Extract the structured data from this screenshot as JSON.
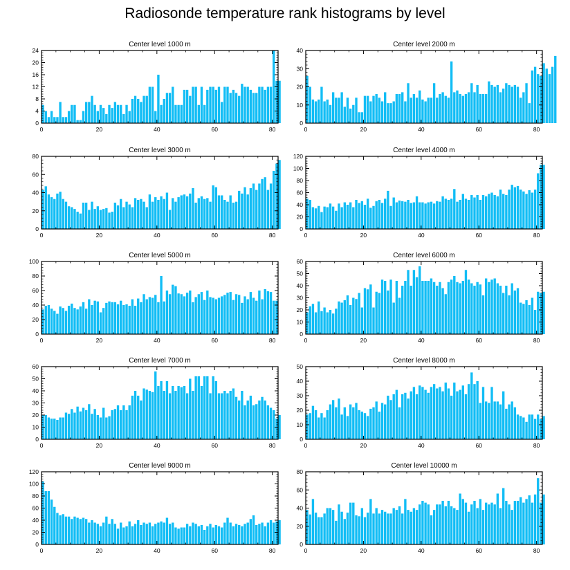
{
  "title": "Radiosonde temperature rank histograms by level",
  "colors": {
    "bar": "#12bdf5",
    "frame": "#000000",
    "background": "#ffffff"
  },
  "chart_data": [
    {
      "type": "bar",
      "title": "Center level 1000 m",
      "xlabel": "",
      "ylabel": "",
      "xlim": [
        0,
        82
      ],
      "ylim": [
        0,
        24
      ],
      "xticks": [
        0,
        20,
        40,
        60,
        80
      ],
      "yticks": [
        0,
        4,
        8,
        12,
        16,
        20,
        24
      ],
      "values": [
        6,
        4,
        2,
        4,
        2,
        2,
        7,
        2,
        2,
        4,
        6,
        6,
        1,
        1,
        4,
        7,
        7,
        9,
        6,
        4,
        6,
        5,
        3,
        6,
        5,
        7,
        6,
        6,
        3,
        6,
        4,
        8,
        9,
        8,
        7,
        9,
        9,
        12,
        12,
        4,
        16,
        6,
        8,
        10,
        10,
        12,
        6,
        6,
        6,
        11,
        11,
        9,
        12,
        12,
        6,
        12,
        6,
        11,
        12,
        12,
        11,
        12,
        7,
        12,
        12,
        10,
        11,
        10,
        9,
        13,
        12,
        12,
        11,
        10,
        10,
        12,
        12,
        11,
        12,
        12,
        24,
        14,
        14
      ]
    },
    {
      "type": "bar",
      "title": "Center level 2000 m",
      "xlabel": "",
      "ylabel": "",
      "xlim": [
        0,
        82
      ],
      "ylim": [
        0,
        40
      ],
      "xticks": [
        0,
        20,
        40,
        60,
        80
      ],
      "yticks": [
        0,
        10,
        20,
        30,
        40
      ],
      "values": [
        26,
        20,
        13,
        12,
        13,
        20,
        12,
        13,
        10,
        17,
        14,
        14,
        17,
        9,
        14,
        8,
        10,
        14,
        6,
        6,
        15,
        15,
        12,
        15,
        16,
        14,
        12,
        17,
        11,
        11,
        12,
        16,
        16,
        17,
        12,
        22,
        14,
        16,
        14,
        18,
        13,
        12,
        14,
        14,
        22,
        14,
        16,
        17,
        15,
        14,
        34,
        17,
        18,
        16,
        15,
        16,
        17,
        22,
        17,
        21,
        16,
        16,
        16,
        23,
        21,
        20,
        21,
        17,
        19,
        22,
        21,
        20,
        21,
        20,
        14,
        17,
        22,
        11,
        29,
        31,
        27,
        26,
        33,
        30,
        27,
        31,
        37
      ]
    },
    {
      "type": "bar",
      "title": "Center level 3000 m",
      "xlabel": "",
      "ylabel": "",
      "xlim": [
        0,
        82
      ],
      "ylim": [
        0,
        80
      ],
      "xticks": [
        0,
        20,
        40,
        60,
        80
      ],
      "yticks": [
        0,
        20,
        40,
        60,
        80
      ],
      "values": [
        43,
        47,
        38,
        35,
        33,
        39,
        41,
        33,
        30,
        25,
        24,
        22,
        19,
        17,
        29,
        29,
        21,
        30,
        22,
        25,
        21,
        22,
        23,
        18,
        19,
        29,
        26,
        33,
        24,
        30,
        27,
        24,
        34,
        32,
        33,
        30,
        24,
        38,
        30,
        35,
        32,
        36,
        33,
        40,
        21,
        34,
        30,
        35,
        37,
        38,
        36,
        39,
        45,
        29,
        34,
        36,
        33,
        34,
        30,
        48,
        46,
        37,
        37,
        32,
        30,
        37,
        29,
        30,
        42,
        39,
        46,
        38,
        45,
        50,
        43,
        50,
        55,
        57,
        43,
        50,
        64,
        72,
        76
      ]
    },
    {
      "type": "bar",
      "title": "Center level 4000 m",
      "xlabel": "",
      "ylabel": "",
      "xlim": [
        0,
        82
      ],
      "ylim": [
        0,
        120
      ],
      "xticks": [
        0,
        20,
        40,
        60,
        80
      ],
      "yticks": [
        0,
        20,
        40,
        60,
        80,
        100,
        120
      ],
      "values": [
        50,
        48,
        36,
        34,
        38,
        28,
        37,
        36,
        42,
        37,
        30,
        42,
        36,
        44,
        40,
        44,
        36,
        48,
        43,
        46,
        40,
        50,
        35,
        38,
        46,
        48,
        43,
        50,
        63,
        38,
        52,
        44,
        47,
        46,
        45,
        48,
        43,
        44,
        54,
        44,
        44,
        42,
        44,
        45,
        42,
        46,
        45,
        54,
        50,
        48,
        50,
        66,
        45,
        48,
        58,
        50,
        48,
        56,
        52,
        56,
        48,
        56,
        54,
        58,
        60,
        56,
        54,
        65,
        58,
        56,
        65,
        73,
        69,
        71,
        65,
        62,
        58,
        64,
        60,
        65,
        92,
        106,
        106
      ]
    },
    {
      "type": "bar",
      "title": "Center level 5000 m",
      "xlabel": "",
      "ylabel": "",
      "xlim": [
        0,
        82
      ],
      "ylim": [
        0,
        100
      ],
      "xticks": [
        0,
        20,
        40,
        60,
        80
      ],
      "yticks": [
        0,
        20,
        40,
        60,
        80,
        100
      ],
      "values": [
        34,
        39,
        40,
        35,
        32,
        28,
        38,
        36,
        32,
        39,
        42,
        36,
        34,
        38,
        44,
        35,
        48,
        40,
        46,
        45,
        30,
        36,
        43,
        45,
        44,
        44,
        41,
        46,
        40,
        41,
        39,
        48,
        39,
        49,
        44,
        55,
        48,
        51,
        50,
        54,
        44,
        80,
        45,
        60,
        55,
        68,
        66,
        56,
        55,
        52,
        57,
        60,
        44,
        51,
        55,
        58,
        47,
        60,
        51,
        50,
        48,
        50,
        52,
        54,
        57,
        58,
        47,
        55,
        54,
        43,
        52,
        48,
        58,
        50,
        46,
        60,
        48,
        62,
        59,
        58,
        46,
        46
      ]
    },
    {
      "type": "bar",
      "title": "Center level 6000 m",
      "xlabel": "",
      "ylabel": "",
      "xlim": [
        0,
        82
      ],
      "ylim": [
        0,
        60
      ],
      "xticks": [
        0,
        20,
        40,
        60,
        80
      ],
      "yticks": [
        0,
        10,
        20,
        30,
        40,
        50,
        60
      ],
      "values": [
        18,
        23,
        25,
        18,
        27,
        19,
        22,
        18,
        20,
        17,
        21,
        27,
        26,
        28,
        32,
        24,
        30,
        29,
        34,
        22,
        38,
        37,
        41,
        22,
        35,
        34,
        45,
        44,
        36,
        45,
        26,
        44,
        30,
        40,
        44,
        53,
        40,
        53,
        47,
        56,
        44,
        44,
        44,
        46,
        43,
        40,
        43,
        38,
        33,
        43,
        45,
        48,
        43,
        42,
        44,
        53,
        45,
        42,
        40,
        43,
        41,
        32,
        46,
        43,
        45,
        46,
        42,
        40,
        34,
        40,
        32,
        42,
        36,
        38,
        26,
        25,
        28,
        24,
        30,
        20,
        35,
        34,
        35
      ]
    },
    {
      "type": "bar",
      "title": "Center level 7000 m",
      "xlabel": "",
      "ylabel": "",
      "xlim": [
        0,
        82
      ],
      "ylim": [
        0,
        60
      ],
      "xticks": [
        0,
        20,
        40,
        60,
        80
      ],
      "yticks": [
        0,
        10,
        20,
        30,
        40,
        50,
        60
      ],
      "values": [
        20,
        20,
        18,
        17,
        17,
        16,
        18,
        18,
        22,
        21,
        25,
        22,
        27,
        23,
        26,
        24,
        29,
        21,
        25,
        20,
        18,
        26,
        18,
        19,
        24,
        25,
        28,
        24,
        28,
        24,
        28,
        36,
        40,
        36,
        32,
        42,
        41,
        40,
        39,
        56,
        44,
        48,
        40,
        48,
        38,
        44,
        40,
        44,
        43,
        44,
        38,
        50,
        40,
        52,
        52,
        44,
        52,
        52,
        38,
        52,
        48,
        38,
        38,
        40,
        38,
        40,
        42,
        35,
        32,
        40,
        28,
        32,
        36,
        28,
        29,
        32,
        35,
        32,
        28,
        26,
        24,
        17,
        20
      ]
    },
    {
      "type": "bar",
      "title": "Center level 8000 m",
      "xlabel": "",
      "ylabel": "",
      "xlim": [
        0,
        82
      ],
      "ylim": [
        0,
        50
      ],
      "xticks": [
        0,
        20,
        40,
        60,
        80
      ],
      "yticks": [
        0,
        10,
        20,
        30,
        40,
        50
      ],
      "values": [
        17,
        18,
        23,
        20,
        15,
        18,
        15,
        20,
        24,
        27,
        22,
        28,
        17,
        22,
        16,
        24,
        22,
        25,
        20,
        19,
        18,
        16,
        21,
        22,
        26,
        19,
        25,
        24,
        30,
        27,
        31,
        34,
        22,
        31,
        32,
        28,
        33,
        36,
        31,
        37,
        36,
        34,
        32,
        36,
        38,
        35,
        36,
        33,
        39,
        35,
        30,
        39,
        33,
        34,
        37,
        31,
        38,
        46,
        38,
        40,
        25,
        36,
        26,
        25,
        36,
        26,
        26,
        24,
        33,
        21,
        24,
        26,
        22,
        17,
        16,
        15,
        12,
        17,
        17,
        14,
        17,
        14,
        16
      ]
    },
    {
      "type": "bar",
      "title": "Center level 9000 m",
      "xlabel": "",
      "ylabel": "",
      "xlim": [
        0,
        82
      ],
      "ylim": [
        0,
        120
      ],
      "xticks": [
        0,
        20,
        40,
        60,
        80
      ],
      "yticks": [
        0,
        20,
        40,
        60,
        80,
        100,
        120
      ],
      "values": [
        104,
        88,
        88,
        74,
        62,
        52,
        48,
        50,
        46,
        46,
        42,
        46,
        44,
        42,
        44,
        42,
        36,
        40,
        36,
        34,
        30,
        36,
        46,
        34,
        42,
        34,
        26,
        36,
        28,
        30,
        38,
        30,
        34,
        40,
        32,
        36,
        34,
        36,
        30,
        34,
        36,
        38,
        36,
        44,
        34,
        36,
        28,
        26,
        28,
        28,
        34,
        30,
        36,
        34,
        30,
        32,
        24,
        30,
        34,
        28,
        32,
        30,
        28,
        36,
        44,
        36,
        30,
        34,
        32,
        30,
        34,
        36,
        42,
        48,
        32,
        34,
        36,
        30,
        36,
        40,
        36,
        38,
        40
      ]
    },
    {
      "type": "bar",
      "title": "Center level 10000 m",
      "xlabel": "",
      "ylabel": "",
      "xlim": [
        0,
        82
      ],
      "ylim": [
        0,
        80
      ],
      "xticks": [
        0,
        20,
        40,
        60,
        80
      ],
      "yticks": [
        0,
        20,
        40,
        60,
        80
      ],
      "values": [
        38,
        33,
        50,
        35,
        30,
        30,
        34,
        40,
        40,
        38,
        26,
        44,
        36,
        28,
        35,
        46,
        46,
        32,
        31,
        40,
        30,
        35,
        50,
        34,
        40,
        34,
        38,
        36,
        34,
        34,
        40,
        38,
        42,
        34,
        50,
        38,
        36,
        40,
        38,
        44,
        48,
        46,
        44,
        32,
        38,
        44,
        44,
        48,
        42,
        48,
        42,
        40,
        38,
        56,
        50,
        46,
        36,
        44,
        48,
        40,
        50,
        38,
        46,
        44,
        46,
        44,
        56,
        40,
        62,
        48,
        44,
        38,
        48,
        48,
        52,
        46,
        50,
        54,
        46,
        55,
        73,
        46,
        55
      ]
    }
  ]
}
